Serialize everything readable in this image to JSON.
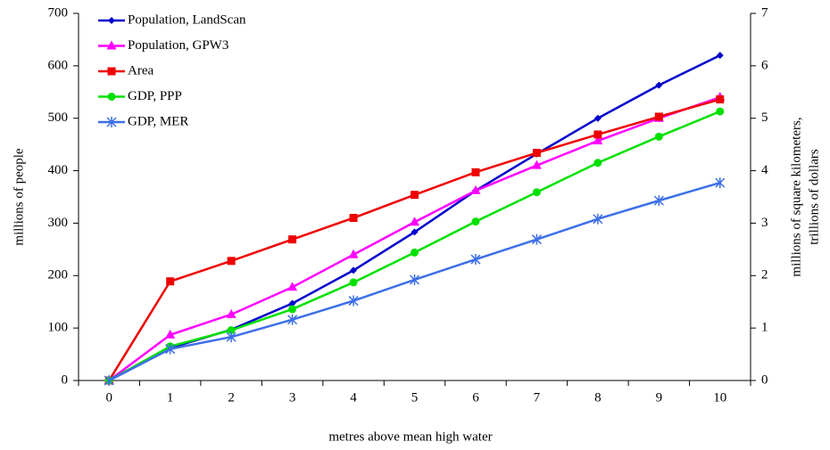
{
  "chart_data": {
    "type": "line",
    "xlabel": "metres above mean high water",
    "ylabel": "millions of people",
    "y2label": [
      "millions of square kilometers,",
      "trillions of dollars"
    ],
    "categories": [
      "0",
      "1",
      "2",
      "3",
      "4",
      "5",
      "6",
      "7",
      "8",
      "9",
      "10"
    ],
    "ylim": [
      0,
      700
    ],
    "yticks": [
      0,
      100,
      200,
      300,
      400,
      500,
      600,
      700
    ],
    "y2lim": [
      0,
      7
    ],
    "y2ticks": [
      0,
      1,
      2,
      3,
      4,
      5,
      6,
      7
    ],
    "legend": "top-left",
    "series": [
      {
        "name": "Population, LandScan",
        "color": "#0000cc",
        "marker": "diamond",
        "values": [
          0,
          62,
          97,
          147,
          210,
          283,
          362,
          432,
          500,
          563,
          620
        ]
      },
      {
        "name": "Population, GPW3",
        "color": "#ff00ff",
        "marker": "triangle",
        "values": [
          0,
          87,
          126,
          178,
          240,
          302,
          362,
          410,
          457,
          500,
          540
        ]
      },
      {
        "name": "Area",
        "color": "#ee0000",
        "marker": "square",
        "axis": "y2",
        "values": [
          0,
          1.89,
          2.28,
          2.69,
          3.1,
          3.54,
          3.97,
          4.34,
          4.69,
          5.03,
          5.36
        ]
      },
      {
        "name": "GDP, PPP",
        "color": "#00e000",
        "marker": "circle",
        "axis": "y2",
        "values": [
          0,
          0.65,
          0.96,
          1.36,
          1.87,
          2.44,
          3.03,
          3.59,
          4.15,
          4.65,
          5.13
        ]
      },
      {
        "name": "GDP, MER",
        "color": "#3d6fe8",
        "marker": "asterisk",
        "axis": "y2",
        "values": [
          0,
          0.6,
          0.83,
          1.16,
          1.52,
          1.92,
          2.31,
          2.69,
          3.08,
          3.43,
          3.77
        ]
      }
    ]
  }
}
